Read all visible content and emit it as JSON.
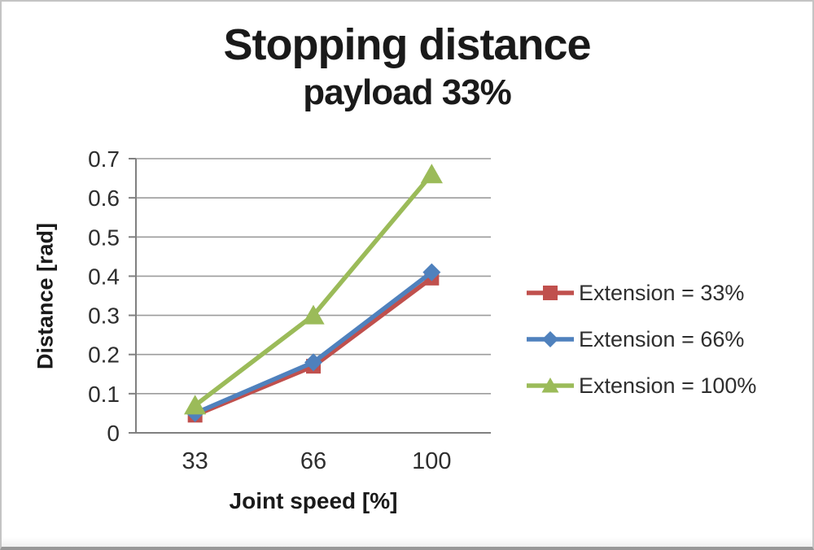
{
  "chart_data": {
    "type": "line",
    "title": "Stopping distance",
    "subtitle": "payload 33%",
    "xlabel": "Joint speed [%]",
    "ylabel": "Distance [rad]",
    "categories": [
      "33",
      "66",
      "100"
    ],
    "series": [
      {
        "name": "Extension = 33%",
        "color": "#C0504D",
        "marker": "square",
        "values": [
          0.045,
          0.17,
          0.395
        ]
      },
      {
        "name": "Extension = 66%",
        "color": "#4F81BD",
        "marker": "diamond",
        "values": [
          0.05,
          0.18,
          0.41
        ]
      },
      {
        "name": "Extension = 100%",
        "color": "#9BBB59",
        "marker": "triangle",
        "values": [
          0.07,
          0.3,
          0.66
        ]
      }
    ],
    "ylim": [
      0,
      0.7
    ],
    "ytick_step": 0.1,
    "ytick_labels": [
      "0",
      "0.1",
      "0.2",
      "0.3",
      "0.4",
      "0.5",
      "0.6",
      "0.7"
    ],
    "grid": true,
    "legend_position": "right",
    "colors": {
      "gridline": "#9c9c9c",
      "axis": "#808080",
      "tick_label": "#2e2e2e",
      "title_text": "#1a1a1a"
    }
  }
}
